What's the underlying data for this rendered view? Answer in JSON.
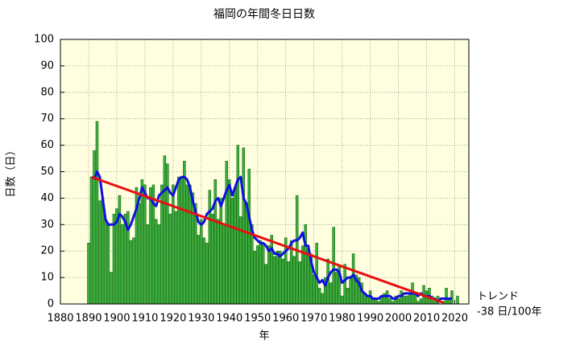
{
  "chart_data": {
    "type": "bar",
    "title": "福岡の年間冬日日数",
    "xlabel": "年",
    "ylabel": "日数（日）",
    "xlim": [
      1880,
      2025
    ],
    "xticks": [
      1880,
      1890,
      1900,
      1910,
      1920,
      1930,
      1940,
      1950,
      1960,
      1970,
      1980,
      1990,
      2000,
      2010,
      2020
    ],
    "ylim": [
      0,
      100
    ],
    "yticks": [
      0,
      10,
      20,
      30,
      40,
      50,
      60,
      70,
      80,
      90,
      100
    ],
    "grid": true,
    "annotations": [
      "トレンド",
      "-38 日/100年"
    ],
    "series": [
      {
        "type": "bar",
        "color": "#3cae3c",
        "x": [
          1890,
          1891,
          1892,
          1893,
          1894,
          1895,
          1896,
          1897,
          1898,
          1899,
          1900,
          1901,
          1902,
          1903,
          1904,
          1905,
          1906,
          1907,
          1908,
          1909,
          1910,
          1911,
          1912,
          1913,
          1914,
          1915,
          1916,
          1917,
          1918,
          1919,
          1920,
          1921,
          1922,
          1923,
          1924,
          1925,
          1926,
          1927,
          1928,
          1929,
          1930,
          1931,
          1932,
          1933,
          1934,
          1935,
          1936,
          1937,
          1938,
          1939,
          1940,
          1941,
          1942,
          1943,
          1944,
          1945,
          1946,
          1947,
          1948,
          1949,
          1950,
          1951,
          1952,
          1953,
          1954,
          1955,
          1956,
          1957,
          1958,
          1959,
          1960,
          1961,
          1962,
          1963,
          1964,
          1965,
          1966,
          1967,
          1968,
          1969,
          1970,
          1971,
          1972,
          1973,
          1974,
          1975,
          1976,
          1977,
          1978,
          1979,
          1980,
          1981,
          1982,
          1983,
          1984,
          1985,
          1986,
          1987,
          1988,
          1989,
          1990,
          1991,
          1992,
          1993,
          1994,
          1995,
          1996,
          1997,
          1998,
          1999,
          2000,
          2001,
          2002,
          2003,
          2004,
          2005,
          2006,
          2007,
          2008,
          2009,
          2010,
          2011,
          2012,
          2013,
          2014,
          2015,
          2016,
          2017,
          2018,
          2019,
          2020,
          2021
        ],
        "values": [
          23,
          48,
          58,
          69,
          39,
          40,
          32,
          30,
          12,
          34,
          36,
          41,
          30,
          34,
          35,
          24,
          25,
          44,
          38,
          47,
          45,
          30,
          44,
          45,
          32,
          30,
          45,
          56,
          53,
          34,
          45,
          35,
          48,
          48,
          54,
          45,
          45,
          42,
          38,
          26,
          32,
          25,
          23,
          43,
          34,
          47,
          32,
          40,
          30,
          54,
          47,
          40,
          44,
          60,
          33,
          59,
          38,
          51,
          30,
          20,
          22,
          24,
          23,
          15,
          22,
          26,
          18,
          20,
          20,
          17,
          25,
          16,
          24,
          18,
          41,
          16,
          22,
          30,
          21,
          19,
          11,
          23,
          6,
          4,
          10,
          17,
          8,
          29,
          12,
          14,
          3,
          15,
          6,
          10,
          19,
          11,
          10,
          8,
          4,
          3,
          5,
          2,
          2,
          1,
          3,
          4,
          5,
          2,
          1,
          3,
          2,
          5,
          3,
          3,
          4,
          8,
          4,
          1,
          2,
          7,
          5,
          6,
          3,
          1,
          3,
          0,
          1,
          6,
          2,
          5,
          0,
          3
        ]
      },
      {
        "type": "line",
        "color": "#1010e0",
        "x": [
          1892,
          1893,
          1894,
          1895,
          1896,
          1897,
          1898,
          1899,
          1900,
          1901,
          1902,
          1903,
          1904,
          1905,
          1906,
          1907,
          1908,
          1909,
          1910,
          1911,
          1912,
          1913,
          1914,
          1915,
          1916,
          1917,
          1918,
          1919,
          1920,
          1921,
          1922,
          1923,
          1924,
          1925,
          1926,
          1927,
          1928,
          1929,
          1930,
          1931,
          1932,
          1933,
          1934,
          1935,
          1936,
          1937,
          1938,
          1939,
          1940,
          1941,
          1942,
          1943,
          1944,
          1945,
          1946,
          1947,
          1948,
          1949,
          1950,
          1951,
          1952,
          1953,
          1954,
          1955,
          1956,
          1957,
          1958,
          1959,
          1960,
          1961,
          1962,
          1963,
          1964,
          1965,
          1966,
          1967,
          1968,
          1969,
          1970,
          1971,
          1972,
          1973,
          1974,
          1975,
          1976,
          1977,
          1978,
          1979,
          1980,
          1981,
          1982,
          1983,
          1984,
          1985,
          1986,
          1987,
          1988,
          1989,
          1990,
          1991,
          1992,
          1993,
          1994,
          1995,
          1996,
          1997,
          1998,
          1999,
          2000,
          2001,
          2002,
          2003,
          2004,
          2005,
          2006,
          2007,
          2008,
          2009,
          2010,
          2011,
          2012,
          2013,
          2014,
          2015,
          2016,
          2017,
          2018,
          2019
        ],
        "values": [
          47,
          50,
          48,
          40,
          32,
          30,
          30,
          30,
          31,
          34,
          33,
          31,
          28,
          30,
          33,
          36,
          40,
          44,
          42,
          40,
          40,
          38,
          37,
          41,
          42,
          43,
          44,
          42,
          41,
          44,
          47,
          48,
          48,
          47,
          44,
          39,
          35,
          31,
          30,
          31,
          34,
          35,
          36,
          39,
          40,
          37,
          40,
          43,
          45,
          41,
          44,
          47,
          48,
          40,
          38,
          33,
          28,
          25,
          24,
          23,
          23,
          22,
          20,
          21,
          19,
          19,
          18,
          19,
          20,
          21,
          23,
          24,
          24,
          25,
          27,
          22,
          22,
          16,
          12,
          10,
          8,
          9,
          7,
          10,
          12,
          13,
          13,
          12,
          8,
          9,
          10,
          10,
          11,
          9,
          8,
          5,
          4,
          3,
          3,
          2,
          2,
          2,
          3,
          3,
          3,
          3,
          2,
          2,
          3,
          3,
          4,
          4,
          4,
          4,
          4,
          3,
          4,
          3,
          3,
          3,
          2,
          2,
          1,
          2,
          2,
          2,
          2,
          2
        ]
      },
      {
        "type": "line",
        "color": "#e81010",
        "x": [
          1891,
          2016
        ],
        "values": [
          48,
          0.5
        ]
      }
    ]
  }
}
